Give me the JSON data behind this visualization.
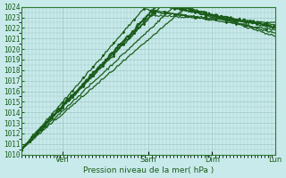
{
  "title": "",
  "xlabel": "Pression niveau de la mer( hPa )",
  "ylabel": "",
  "bg_color": "#c8eaea",
  "grid_color": "#a0c8c8",
  "line_color": "#1a5c1a",
  "ymin": 1010,
  "ymax": 1024,
  "yticks": [
    1010,
    1011,
    1012,
    1013,
    1014,
    1015,
    1016,
    1017,
    1018,
    1019,
    1020,
    1021,
    1022,
    1023,
    1024
  ],
  "day_positions": [
    0.16,
    0.5,
    0.75,
    1.0
  ],
  "day_labels": [
    "Ven",
    "Sam",
    "Dim",
    "Lun"
  ],
  "n_points": 200
}
